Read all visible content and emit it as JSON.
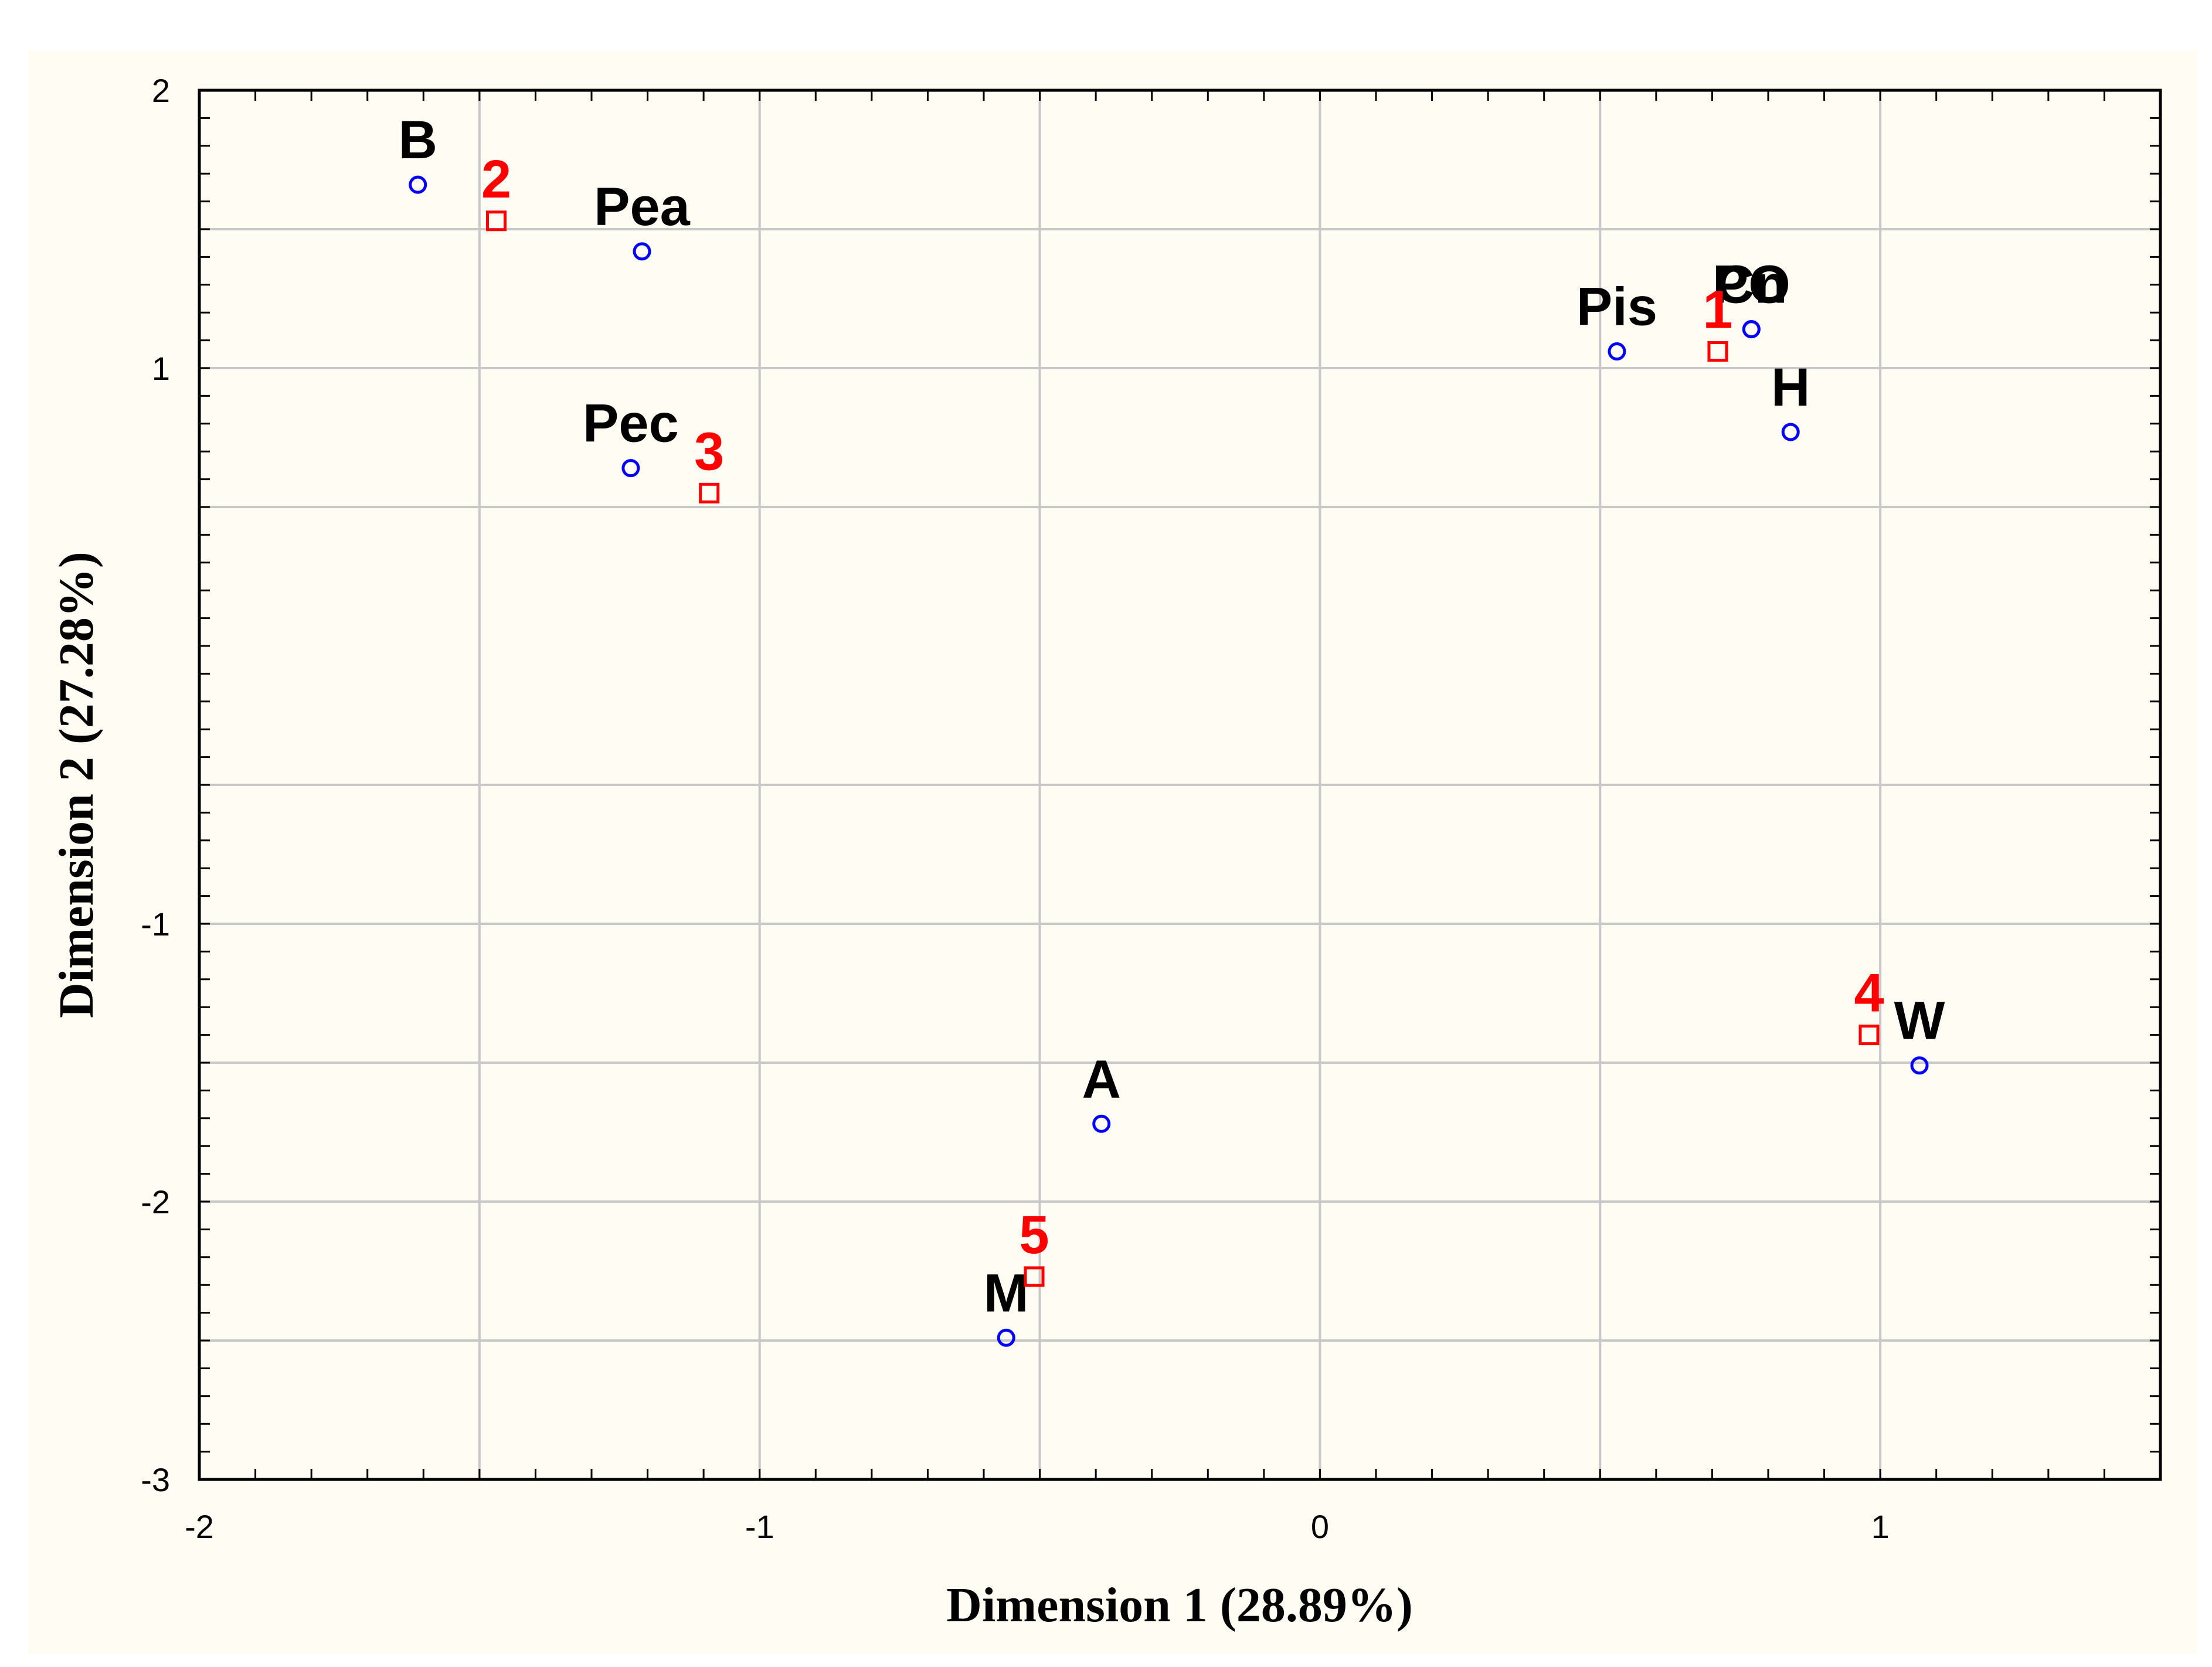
{
  "chart_data": {
    "type": "scatter",
    "title": "",
    "xlabel": "Dimension 1 (28.89%)",
    "ylabel": "Dimension 2 (27.28%)",
    "xlim": [
      -2,
      1.5
    ],
    "ylim": [
      -3,
      2
    ],
    "grid": true,
    "x_ticks": [
      -2,
      -1,
      0,
      1
    ],
    "x_tick_labels": [
      "-2",
      "-1",
      "0",
      "1"
    ],
    "y_ticks": [
      -3,
      -2,
      -1,
      1,
      2
    ],
    "y_tick_labels": [
      "-3",
      "-2",
      "-1",
      "1",
      "2"
    ],
    "grid_x": [
      -2,
      -1.5,
      -1,
      -0.5,
      0,
      0.5,
      1
    ],
    "grid_y": [
      -3,
      -2.5,
      -2,
      -1.5,
      -1,
      -0.5,
      0.5,
      1,
      1.5,
      2
    ],
    "colors": {
      "variables": "#0000ff",
      "cases": "#ff0000",
      "grid": "#c8c8c8",
      "axis": "#000000",
      "background": "#fffcf3"
    },
    "series": [
      {
        "name": "variables",
        "marker": "circle",
        "points": [
          {
            "label": "B",
            "x": -1.61,
            "y": 1.66
          },
          {
            "label": "Pea",
            "x": -1.21,
            "y": 1.42
          },
          {
            "label": "Pec",
            "x": -1.23,
            "y": 0.64
          },
          {
            "label": "Pis",
            "x": 0.53,
            "y": 1.06
          },
          {
            "label": "PO",
            "x": 0.77,
            "y": 1.14
          },
          {
            "label": "Cn",
            "x": 0.77,
            "y": 1.14
          },
          {
            "label": "H",
            "x": 0.84,
            "y": 0.77
          },
          {
            "label": "W",
            "x": 1.07,
            "y": -1.51
          },
          {
            "label": "A",
            "x": -0.39,
            "y": -1.72
          },
          {
            "label": "M",
            "x": -0.56,
            "y": -2.49
          }
        ]
      },
      {
        "name": "cases",
        "marker": "square",
        "points": [
          {
            "label": "1",
            "x": 0.71,
            "y": 1.06
          },
          {
            "label": "2",
            "x": -1.47,
            "y": 1.53
          },
          {
            "label": "3",
            "x": -1.09,
            "y": 0.55
          },
          {
            "label": "4",
            "x": 0.98,
            "y": -1.4
          },
          {
            "label": "5",
            "x": -0.51,
            "y": -2.27
          }
        ]
      }
    ]
  }
}
